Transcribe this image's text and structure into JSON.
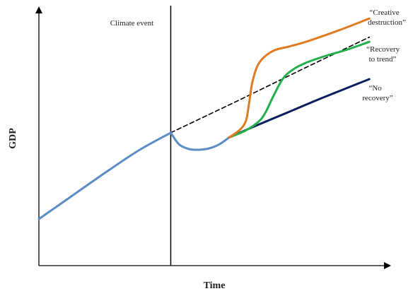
{
  "chart_data": {
    "type": "line",
    "title": "",
    "xlabel": "Time",
    "ylabel": "GDP",
    "xlim": [
      0,
      100
    ],
    "ylim": [
      0,
      100
    ],
    "grid": false,
    "event": {
      "label": "Climate event",
      "x": 39.5
    },
    "series": [
      {
        "key": "pre",
        "color": "#5b8cc5",
        "dash": false,
        "x": [
          0,
          10,
          20,
          30,
          39.5
        ],
        "y": [
          20,
          30,
          40,
          49.5,
          57
        ]
      },
      {
        "key": "dip",
        "color": "#5b8cc5",
        "dash": false,
        "x": [
          39.5,
          42,
          45,
          48,
          51,
          54,
          57
        ],
        "y": [
          57,
          52,
          50,
          49.7,
          50.3,
          52,
          55
        ]
      },
      {
        "key": "trend",
        "color": "#000000",
        "dash": true,
        "x": [
          39.5,
          60,
          80,
          99
        ],
        "y": [
          57,
          71,
          85,
          98
        ]
      },
      {
        "key": "creative",
        "color": "#e07a1f",
        "dash": false,
        "x": [
          57,
          60,
          62,
          63,
          64,
          66,
          70,
          75,
          80,
          90,
          99
        ],
        "y": [
          55,
          58,
          62,
          70,
          79,
          87,
          92,
          94,
          96,
          101,
          106
        ]
      },
      {
        "key": "recovery",
        "color": "#22b04c",
        "dash": false,
        "x": [
          57,
          62,
          66,
          68,
          70,
          73,
          76,
          80,
          86,
          92,
          99
        ],
        "y": [
          55,
          58,
          62,
          66,
          72,
          80,
          84,
          87,
          90,
          92.5,
          96
        ]
      },
      {
        "key": "norecovery",
        "color": "#0b1f5e",
        "dash": false,
        "x": [
          57,
          65,
          75,
          85,
          99
        ],
        "y": [
          55,
          60,
          66,
          72,
          80
        ]
      }
    ],
    "annotations": [
      {
        "key": "creative",
        "lines": [
          "“Creative",
          "destruction”"
        ]
      },
      {
        "key": "recovery",
        "lines": [
          "“Recovery",
          "to trend”"
        ]
      },
      {
        "key": "norecovery",
        "lines": [
          "“No",
          "recovery”"
        ]
      }
    ]
  }
}
